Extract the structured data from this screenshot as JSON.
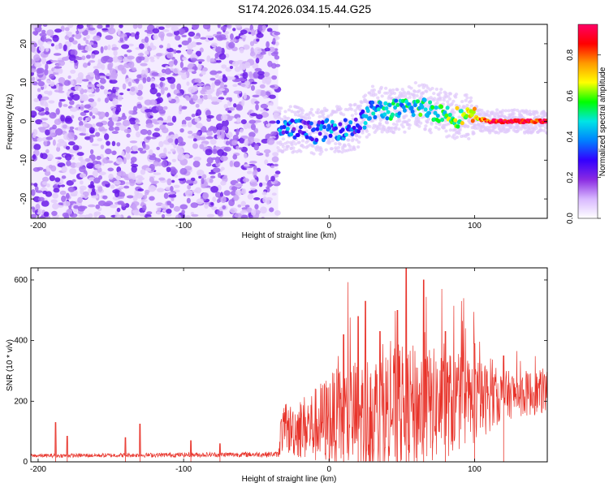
{
  "title": "S174.2026.034.15.44.G25",
  "chart_data": [
    {
      "type": "heatmap",
      "name": "spectrogram",
      "title": "",
      "xlabel": "Height of straight line (km)",
      "ylabel": "Frequency (Hz)",
      "xlim": [
        -205,
        150
      ],
      "ylim": [
        -25,
        25
      ],
      "xticks": [
        -200,
        -100,
        0,
        100
      ],
      "yticks": [
        -20,
        -10,
        0,
        10,
        20
      ],
      "colorbar": {
        "label": "Normalized spectral amplitude",
        "range": [
          0.0,
          0.95
        ],
        "ticks": [
          0.0,
          0.2,
          0.4,
          0.6,
          0.8
        ],
        "colormap": [
          "#ffffff",
          "#d8b8ff",
          "#8a2be2",
          "#3300ff",
          "#0080ff",
          "#00e5e5",
          "#00ff00",
          "#ffff00",
          "#ff9900",
          "#ff0000",
          "#ff0066"
        ]
      },
      "noise_region_x": [
        -205,
        -35
      ],
      "signal_track": {
        "x": [
          -35,
          -20,
          -10,
          0,
          10,
          20,
          30,
          40,
          50,
          60,
          70,
          80,
          90,
          100,
          110,
          120,
          130,
          140,
          150
        ],
        "freq": [
          -2,
          -2,
          -3,
          -2,
          -2,
          -1,
          3,
          3,
          3,
          4,
          3,
          2,
          1,
          1,
          0,
          0,
          0,
          0,
          0
        ],
        "amplitude": [
          0.35,
          0.3,
          0.3,
          0.35,
          0.35,
          0.3,
          0.4,
          0.45,
          0.45,
          0.5,
          0.5,
          0.55,
          0.6,
          0.7,
          0.85,
          0.9,
          0.9,
          0.85,
          0.9
        ]
      }
    },
    {
      "type": "line",
      "name": "snr",
      "title": "",
      "xlabel": "Height of straight line (km)",
      "ylabel": "SNR (10 * v/v)",
      "xlim": [
        -205,
        150
      ],
      "ylim": [
        0,
        640
      ],
      "xticks": [
        -200,
        -100,
        0,
        100
      ],
      "yticks": [
        0,
        200,
        400,
        600
      ],
      "color": "#e8332a",
      "spikes": [
        {
          "x": -188,
          "y": 130
        },
        {
          "x": -180,
          "y": 85
        },
        {
          "x": -140,
          "y": 80
        },
        {
          "x": -130,
          "y": 125
        },
        {
          "x": -95,
          "y": 70
        },
        {
          "x": -75,
          "y": 60
        },
        {
          "x": 10,
          "y": 420
        },
        {
          "x": 20,
          "y": 480
        },
        {
          "x": 25,
          "y": 530
        },
        {
          "x": 35,
          "y": 430
        },
        {
          "x": 47,
          "y": 500
        },
        {
          "x": 53,
          "y": 640
        },
        {
          "x": 65,
          "y": 600
        },
        {
          "x": 80,
          "y": 430
        },
        {
          "x": 100,
          "y": 390
        },
        {
          "x": 120,
          "y": 350
        }
      ],
      "envelope": {
        "x": [
          -205,
          -35,
          -33,
          -10,
          0,
          20,
          40,
          60,
          80,
          100,
          120,
          150
        ],
        "baseline": [
          20,
          25,
          100,
          120,
          140,
          150,
          170,
          180,
          190,
          200,
          220,
          230
        ],
        "spread": [
          10,
          15,
          80,
          140,
          170,
          220,
          230,
          230,
          200,
          160,
          90,
          80
        ]
      }
    }
  ]
}
